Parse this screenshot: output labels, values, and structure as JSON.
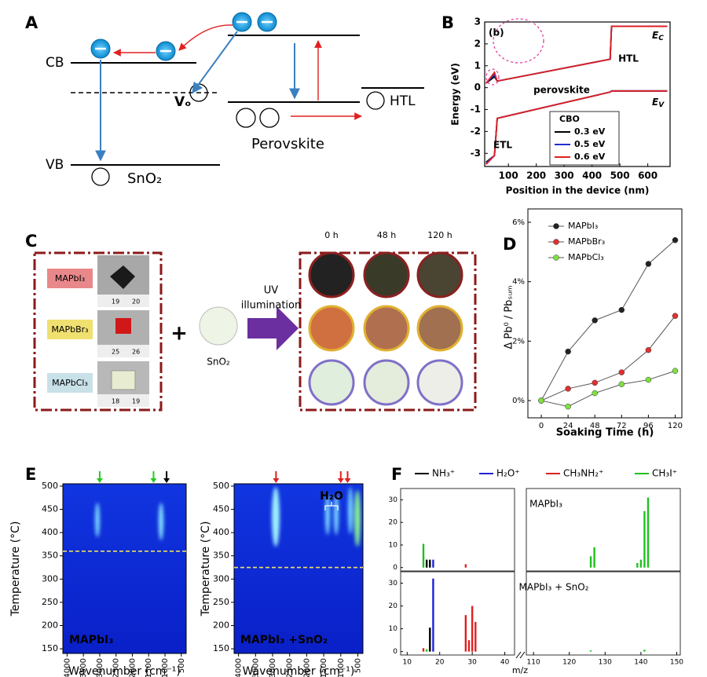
{
  "panel_labels": [
    "A",
    "B",
    "C",
    "D",
    "E",
    "F"
  ],
  "panel_a": {
    "cb": "CB",
    "vb": "VB",
    "vo": "Vₒ",
    "sno2": "SnO₂",
    "perovskite": "Perovskite",
    "htl": "HTL"
  },
  "panel_c": {
    "samples": [
      "MAPbI₃",
      "MAPbBr₃",
      "MAPbCl₃"
    ],
    "rulers": [
      [
        "19",
        "20"
      ],
      [
        "25",
        "26"
      ],
      [
        "18",
        "19"
      ]
    ],
    "plus": "+",
    "sno2": "SnO₂",
    "arrow_label": [
      "UV",
      "illumination"
    ],
    "times": [
      "0 h",
      "48 h",
      "120 h"
    ]
  },
  "chart_data": [
    {
      "type": "line",
      "inset_label": "(b)",
      "xlabel": "Position in the device (nm)",
      "ylabel": "Energy (eV)",
      "region_labels": [
        "perovskite",
        "HTL",
        "ETL"
      ],
      "band_labels": [
        {
          "text": "E",
          "sub": "C"
        },
        {
          "text": "E",
          "sub": "V"
        }
      ],
      "legend_title": "CBO",
      "x": [
        20,
        50,
        60,
        465,
        470,
        670
      ],
      "series": [
        {
          "name": "0.3 eV",
          "color": "#000000",
          "values": [
            0.2,
            0.5,
            0.3,
            1.3,
            2.8,
            2.8
          ],
          "values_v": [
            -3.4,
            -3.1,
            -1.4,
            -0.2,
            -0.15,
            -0.15
          ]
        },
        {
          "name": "0.5 eV",
          "color": "#1f2fd0",
          "values": [
            0.2,
            0.6,
            0.3,
            1.3,
            2.8,
            2.8
          ],
          "values_v": [
            -3.45,
            -3.1,
            -1.4,
            -0.2,
            -0.15,
            -0.15
          ]
        },
        {
          "name": "0.6 eV",
          "color": "#e02020",
          "values": [
            0.2,
            0.7,
            0.3,
            1.3,
            2.8,
            2.8
          ],
          "values_v": [
            -3.5,
            -3.1,
            -1.4,
            -0.2,
            -0.15,
            -0.15
          ]
        }
      ],
      "xlim": [
        15,
        680
      ],
      "ylim": [
        -3.6,
        3
      ],
      "xticks": [
        100,
        200,
        300,
        400,
        500,
        600
      ],
      "yticks": [
        -3,
        -2,
        -1,
        0,
        1,
        2,
        3
      ]
    },
    {
      "type": "line",
      "xlabel": "Soaking Time (h)",
      "ylabel": "Δ Pb⁰ / Pbₛᵤₘ",
      "legend": "upper left",
      "x": [
        0,
        24,
        48,
        72,
        96,
        120
      ],
      "series": [
        {
          "name": "MAPbI₃",
          "color": "#222222",
          "values": [
            0,
            1.65,
            2.7,
            3.05,
            4.6,
            5.4
          ]
        },
        {
          "name": "MAPbBr₃",
          "color": "#e03030",
          "values": [
            0,
            0.4,
            0.6,
            0.95,
            1.7,
            2.85
          ]
        },
        {
          "name": "MAPbCl₃",
          "color": "#80e040",
          "values": [
            0,
            -0.2,
            0.25,
            0.55,
            0.7,
            1.0
          ]
        }
      ],
      "xlim": [
        -12,
        126
      ],
      "ylim": [
        -0.58,
        6.45
      ],
      "xticks": [
        0,
        24,
        48,
        72,
        96,
        120
      ],
      "yticks": [
        {
          "value": 0,
          "label": "0%"
        },
        {
          "value": 2,
          "label": "2%"
        },
        {
          "value": 4,
          "label": "4%"
        },
        {
          "value": 6,
          "label": "6%"
        }
      ]
    },
    {
      "type": "heatmap",
      "xlabel": "Wavenumber (cm⁻¹)",
      "ylabel": "Temperature (°C)",
      "xlim": [
        4130,
        350
      ],
      "ylim": [
        140,
        505
      ],
      "xticks": [
        4000,
        3500,
        3000,
        2500,
        2000,
        1500,
        1000,
        500
      ],
      "yticks": [
        150,
        200,
        250,
        300,
        350,
        400,
        450,
        500
      ],
      "panels": [
        {
          "label": "MAPbI₃",
          "threshold": 360,
          "arrows": [
            {
              "x": 3000,
              "color": "#22cc22"
            },
            {
              "x": 1350,
              "color": "#22cc22"
            },
            {
              "x": 950,
              "color": "#000000"
            }
          ]
        },
        {
          "label": "MAPbI₃ +SnO₂",
          "threshold": 325,
          "annotation": "H₂O",
          "arrows": [
            {
              "x": 2900,
              "color": "#e02020"
            },
            {
              "x": 1000,
              "color": "#e02020"
            },
            {
              "x": 800,
              "color": "#e02020"
            }
          ]
        }
      ]
    },
    {
      "type": "bar",
      "xlabel": "m/z",
      "xlim": [
        [
          8,
          43
        ],
        [
          108,
          151
        ]
      ],
      "xticks": [
        [
          10,
          20,
          30,
          40
        ],
        [
          110,
          120,
          130,
          140,
          150
        ]
      ],
      "ylim": [
        -1.5,
        35
      ],
      "yticks": [
        0,
        10,
        20,
        30
      ],
      "series": [
        {
          "name": "NH₃⁺",
          "color": "#000000"
        },
        {
          "name": "H₂O⁺",
          "color": "#2020e0"
        },
        {
          "name": "CH₃NH₂⁺",
          "color": "#e02020"
        },
        {
          "name": "CH₃I⁺",
          "color": "#20c020"
        }
      ],
      "subplots": [
        {
          "label": "MAPbI₃",
          "data": [
            {
              "x": [
                16,
                17
              ],
              "values": [
                3.5,
                3.5
              ]
            },
            {
              "x": [
                18
              ],
              "values": [
                3.5
              ]
            },
            {
              "x": [
                28
              ],
              "values": [
                1.5
              ]
            },
            {
              "x": [
                15,
                126,
                127,
                139,
                140,
                141,
                142
              ],
              "values": [
                10.5,
                5,
                9,
                2,
                3.5,
                25,
                31
              ]
            }
          ]
        },
        {
          "label": "MAPbI₃ + SnO₂",
          "data": [
            {
              "x": [
                17
              ],
              "values": [
                10.5
              ]
            },
            {
              "x": [
                18
              ],
              "values": [
                32
              ]
            },
            {
              "x": [
                15,
                28,
                29,
                30,
                31
              ],
              "values": [
                1.5,
                16,
                5,
                20,
                13
              ]
            },
            {
              "x": [
                16,
                126,
                141
              ],
              "values": [
                1,
                0.5,
                0.8
              ]
            }
          ]
        }
      ]
    }
  ]
}
